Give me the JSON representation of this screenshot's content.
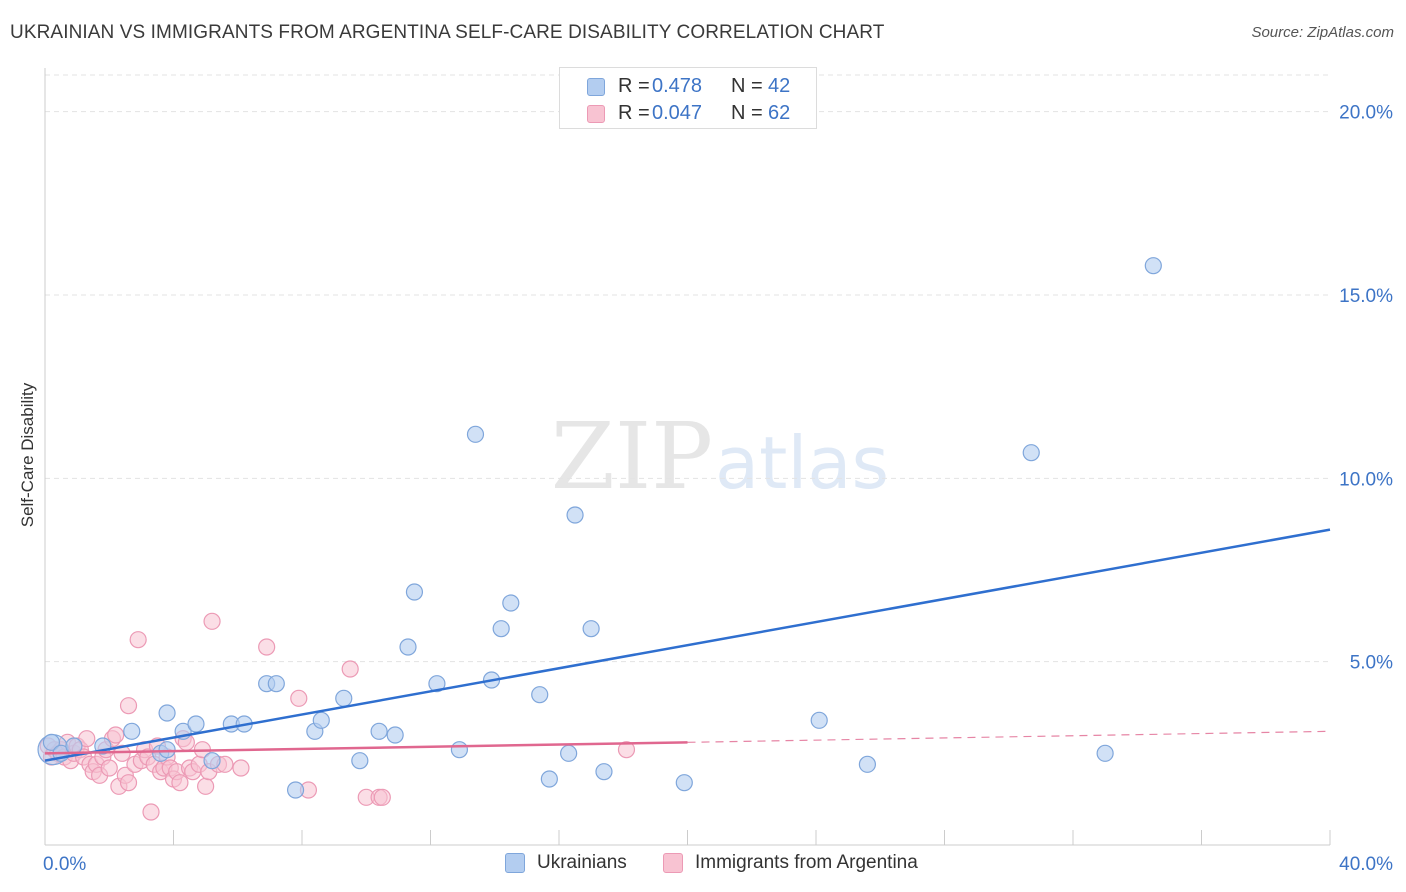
{
  "title": "UKRAINIAN VS IMMIGRANTS FROM ARGENTINA SELF-CARE DISABILITY CORRELATION CHART",
  "source": "Source: ZipAtlas.com",
  "watermark": {
    "zip": "ZIP",
    "atlas": "atlas"
  },
  "legend_top": [
    {
      "r_label": "R =",
      "r_value": "0.478",
      "n_label": "N =",
      "n_value": "42"
    },
    {
      "r_label": "R =",
      "r_value": "0.047",
      "n_label": "N =",
      "n_value": "62"
    }
  ],
  "legend_bottom": [
    "Ukrainians",
    "Immigrants from Argentina"
  ],
  "chart_data": {
    "type": "scatter",
    "title": "UKRAINIAN VS IMMIGRANTS FROM ARGENTINA SELF-CARE DISABILITY CORRELATION CHART",
    "xlabel": "",
    "ylabel": "Self-Care Disability",
    "xlim": [
      0,
      40
    ],
    "ylim": [
      0,
      21
    ],
    "x_tick_labels": [
      {
        "value": 0,
        "label": "0.0%"
      },
      {
        "value": 40,
        "label": "40.0%"
      }
    ],
    "y_tick_labels": [
      {
        "value": 5,
        "label": "5.0%"
      },
      {
        "value": 10,
        "label": "10.0%"
      },
      {
        "value": 15,
        "label": "15.0%"
      },
      {
        "value": 20,
        "label": "20.0%"
      }
    ],
    "grid": true,
    "colors": {
      "ukrainians_fill": "#b3cdf0",
      "ukrainians_stroke": "#7fa6db",
      "ukrainians_line": "#2f6fcf",
      "argentina_fill": "#f8c3d2",
      "argentina_stroke": "#ec9ab5",
      "argentina_line": "#e0678f",
      "tick_label": "#3d74c6"
    },
    "series": [
      {
        "name": "Ukrainians",
        "r": 0.478,
        "n": 42,
        "trend": {
          "x0": 0,
          "y0": 2.3,
          "x1": 40,
          "y1": 8.6,
          "dashed_from": null
        },
        "points": [
          [
            0.2,
            2.8
          ],
          [
            0.5,
            2.5
          ],
          [
            0.9,
            2.7
          ],
          [
            1.8,
            2.7
          ],
          [
            2.7,
            3.1
          ],
          [
            3.6,
            2.5
          ],
          [
            3.8,
            2.6
          ],
          [
            3.8,
            3.6
          ],
          [
            4.3,
            3.1
          ],
          [
            4.7,
            3.3
          ],
          [
            5.2,
            2.3
          ],
          [
            5.8,
            3.3
          ],
          [
            6.2,
            3.3
          ],
          [
            6.9,
            4.4
          ],
          [
            7.2,
            4.4
          ],
          [
            7.8,
            1.5
          ],
          [
            8.4,
            3.1
          ],
          [
            8.6,
            3.4
          ],
          [
            9.3,
            4.0
          ],
          [
            9.8,
            2.3
          ],
          [
            10.4,
            3.1
          ],
          [
            10.9,
            3.0
          ],
          [
            11.3,
            5.4
          ],
          [
            11.5,
            6.9
          ],
          [
            12.2,
            4.4
          ],
          [
            12.9,
            2.6
          ],
          [
            13.4,
            11.2
          ],
          [
            13.9,
            4.5
          ],
          [
            14.2,
            5.9
          ],
          [
            14.5,
            6.6
          ],
          [
            15.4,
            4.1
          ],
          [
            15.7,
            1.8
          ],
          [
            16.3,
            2.5
          ],
          [
            16.5,
            9.0
          ],
          [
            17.0,
            5.9
          ],
          [
            17.4,
            2.0
          ],
          [
            19.9,
            1.7
          ],
          [
            24.1,
            3.4
          ],
          [
            25.6,
            2.2
          ],
          [
            30.7,
            10.7
          ],
          [
            33.0,
            2.5
          ],
          [
            34.5,
            15.8
          ]
        ]
      },
      {
        "name": "Immigrants from Argentina",
        "r": 0.047,
        "n": 62,
        "trend": {
          "x0": 0,
          "y0": 2.5,
          "x1": 40,
          "y1": 3.1,
          "dashed_from": 20
        },
        "points": [
          [
            0.1,
            2.7
          ],
          [
            0.2,
            2.4
          ],
          [
            0.3,
            2.6
          ],
          [
            0.4,
            2.5
          ],
          [
            0.5,
            2.6
          ],
          [
            0.6,
            2.4
          ],
          [
            0.7,
            2.8
          ],
          [
            0.8,
            2.3
          ],
          [
            0.9,
            2.5
          ],
          [
            1.0,
            2.7
          ],
          [
            1.1,
            2.6
          ],
          [
            1.2,
            2.4
          ],
          [
            1.3,
            2.9
          ],
          [
            1.4,
            2.2
          ],
          [
            1.5,
            2.0
          ],
          [
            1.6,
            2.2
          ],
          [
            1.7,
            1.9
          ],
          [
            1.8,
            2.4
          ],
          [
            1.9,
            2.6
          ],
          [
            2.0,
            2.1
          ],
          [
            2.1,
            2.9
          ],
          [
            2.2,
            3.0
          ],
          [
            2.3,
            1.6
          ],
          [
            2.4,
            2.5
          ],
          [
            2.5,
            1.9
          ],
          [
            2.6,
            1.7
          ],
          [
            2.6,
            3.8
          ],
          [
            2.8,
            2.2
          ],
          [
            2.9,
            5.6
          ],
          [
            3.0,
            2.3
          ],
          [
            3.1,
            2.6
          ],
          [
            3.2,
            2.4
          ],
          [
            3.3,
            0.9
          ],
          [
            3.4,
            2.2
          ],
          [
            3.5,
            2.7
          ],
          [
            3.6,
            2.0
          ],
          [
            3.7,
            2.1
          ],
          [
            3.8,
            2.4
          ],
          [
            3.9,
            2.1
          ],
          [
            4.0,
            1.8
          ],
          [
            4.1,
            2.0
          ],
          [
            4.2,
            1.7
          ],
          [
            4.3,
            2.9
          ],
          [
            4.4,
            2.8
          ],
          [
            4.5,
            2.1
          ],
          [
            4.6,
            2.0
          ],
          [
            4.8,
            2.2
          ],
          [
            4.9,
            2.6
          ],
          [
            5.0,
            1.6
          ],
          [
            5.1,
            2.0
          ],
          [
            5.2,
            6.1
          ],
          [
            5.4,
            2.2
          ],
          [
            5.6,
            2.2
          ],
          [
            6.1,
            2.1
          ],
          [
            6.9,
            5.4
          ],
          [
            7.9,
            4.0
          ],
          [
            8.2,
            1.5
          ],
          [
            9.5,
            4.8
          ],
          [
            10.0,
            1.3
          ],
          [
            10.4,
            1.3
          ],
          [
            10.5,
            1.3
          ],
          [
            18.1,
            2.6
          ]
        ]
      }
    ]
  }
}
